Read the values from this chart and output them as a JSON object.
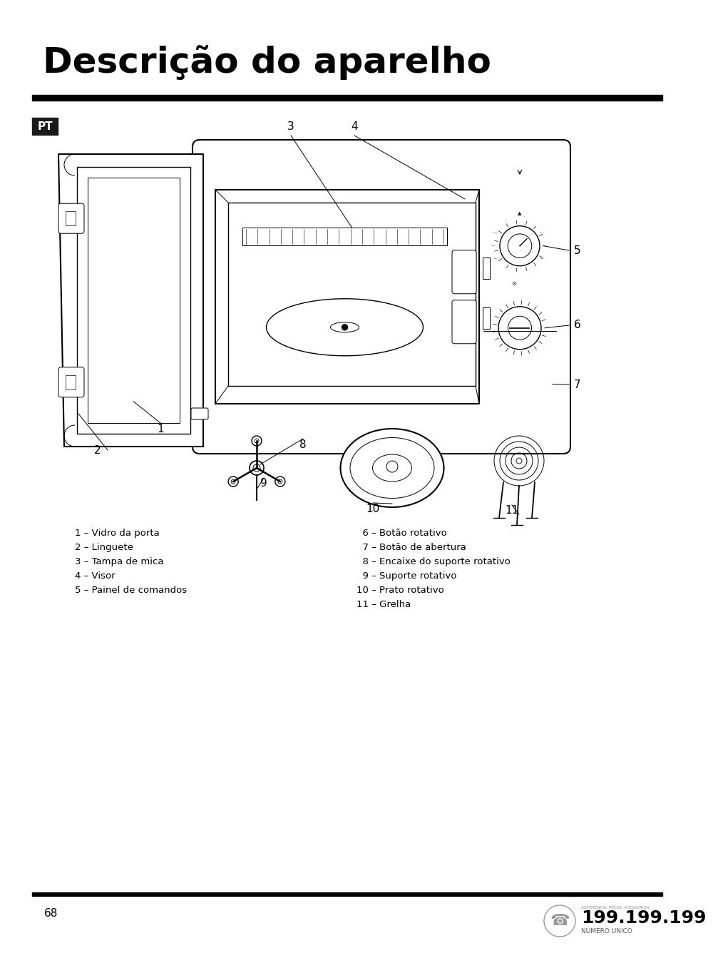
{
  "title": "Descrição do aparelho",
  "page_number": "68",
  "pt_label": "PT",
  "bg_color": "#ffffff",
  "title_fontsize": 36,
  "title_fontstyle": "bold",
  "hr_color": "#000000",
  "pt_box_color": "#1a1a1a",
  "pt_text_color": "#ffffff",
  "pt_fontsize": 11,
  "left_labels": [
    "1 – Vidro da porta",
    "2 – Linguete",
    "3 – Tampa de mica",
    "4 – Visor",
    "5 – Painel de comandos"
  ],
  "right_labels": [
    "  6 – Botão rotativo",
    "  7 – Botão de abertura",
    "  8 – Encaixe do suporte rotativo",
    "  9 – Suporte rotativo",
    "10 – Prato rotativo",
    "11 – Grelha"
  ],
  "label_fontsize": 9.5,
  "label_color": "#000000",
  "footer_number": "68",
  "footer_logo_text": "199.199.199",
  "footer_logo_sub": "NUMERO UNICO"
}
